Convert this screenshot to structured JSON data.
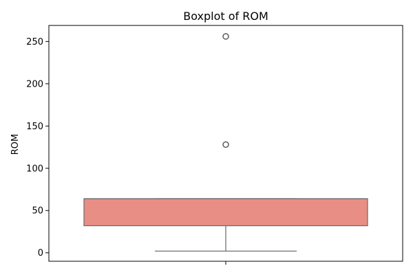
{
  "chart_data": {
    "type": "boxplot",
    "title": "Boxplot of ROM",
    "xlabel": "",
    "ylabel": "ROM",
    "ylim": [
      -10,
      269
    ],
    "yticks": [
      0,
      50,
      100,
      150,
      200,
      250
    ],
    "grid": false,
    "legend": "none",
    "box": {
      "whisker_low": 2,
      "q1": 32,
      "median": 64,
      "q3": 64,
      "whisker_high": 64,
      "outliers": [
        128,
        128,
        256,
        256
      ]
    },
    "colors": {
      "box_fill": "#e98e84",
      "box_edge": "#707070",
      "whisker": "#707070",
      "outlier_edge": "#606060",
      "axes": "#000000"
    }
  }
}
